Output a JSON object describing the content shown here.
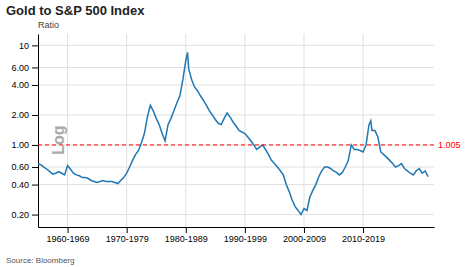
{
  "chart_data": {
    "type": "line",
    "title": "Gold to S&P 500 Index",
    "y_label": "Ratio",
    "watermark": "Log",
    "source": "Source: Bloomberg",
    "log": "y",
    "grid": true,
    "xlim": [
      1955,
      2022
    ],
    "ylim": [
      0.15,
      13
    ],
    "xticks": [
      {
        "value": 1960,
        "label": "1960-1969"
      },
      {
        "value": 1970,
        "label": "1970-1979"
      },
      {
        "value": 1980,
        "label": "1980-1989"
      },
      {
        "value": 1990,
        "label": "1990-1999"
      },
      {
        "value": 2000,
        "label": "2000-2009"
      },
      {
        "value": 2010,
        "label": "2010-2019"
      }
    ],
    "yticks": [
      {
        "value": 0.2,
        "label": "0.20"
      },
      {
        "value": 0.4,
        "label": "0.40"
      },
      {
        "value": 0.6,
        "label": "0.60"
      },
      {
        "value": 1.0,
        "label": "1.00"
      },
      {
        "value": 2.0,
        "label": "2.00"
      },
      {
        "value": 4.0,
        "label": "4.00"
      },
      {
        "value": 6.0,
        "label": "6.00"
      },
      10
    ],
    "ref_line": {
      "value": 1.0,
      "label": "1.005",
      "color": "#FF0000",
      "line_style": "dashed"
    },
    "x": [
      1955.0,
      1955.5,
      1956.0,
      1956.5,
      1957.0,
      1957.5,
      1958.0,
      1958.5,
      1959.0,
      1959.5,
      1960.0,
      1960.5,
      1961.0,
      1961.5,
      1962.0,
      1962.5,
      1963.0,
      1963.5,
      1964.0,
      1964.5,
      1965.0,
      1965.5,
      1966.0,
      1966.5,
      1967.0,
      1967.5,
      1968.0,
      1968.5,
      1969.0,
      1969.5,
      1970.0,
      1970.5,
      1971.0,
      1971.5,
      1972.0,
      1972.5,
      1973.0,
      1973.5,
      1974.0,
      1974.5,
      1975.0,
      1975.5,
      1976.0,
      1976.5,
      1977.0,
      1977.5,
      1978.0,
      1978.5,
      1979.0,
      1979.5,
      1980.0,
      1980.3,
      1980.5,
      1981.0,
      1981.5,
      1982.0,
      1982.5,
      1983.0,
      1983.5,
      1984.0,
      1984.5,
      1985.0,
      1985.5,
      1986.0,
      1986.5,
      1987.0,
      1987.5,
      1988.0,
      1988.5,
      1989.0,
      1990.0,
      1990.5,
      1991.0,
      1991.5,
      1992.0,
      1992.5,
      1993.0,
      1993.5,
      1994.0,
      1994.5,
      1995.0,
      1995.5,
      1996.0,
      1996.5,
      1997.0,
      1997.5,
      1998.0,
      1998.5,
      1999.0,
      1999.5,
      2000.0,
      2000.5,
      2001.0,
      2001.5,
      2002.0,
      2002.5,
      2003.0,
      2003.5,
      2004.0,
      2004.5,
      2005.0,
      2005.5,
      2006.0,
      2006.5,
      2007.0,
      2007.5,
      2008.0,
      2008.5,
      2009.0,
      2009.5,
      2010.0,
      2010.5,
      2011.0,
      2011.3,
      2011.5,
      2012.0,
      2012.5,
      2013.0,
      2013.5,
      2014.0,
      2014.5,
      2015.0,
      2015.5,
      2016.0,
      2016.5,
      2017.0,
      2017.5,
      2018.0,
      2018.5,
      2019.0,
      2019.5,
      2020.0,
      2020.5,
      2021.0
    ],
    "values": [
      0.65,
      0.63,
      0.6,
      0.57,
      0.54,
      0.51,
      0.52,
      0.54,
      0.52,
      0.5,
      0.62,
      0.57,
      0.52,
      0.5,
      0.49,
      0.47,
      0.47,
      0.46,
      0.44,
      0.43,
      0.42,
      0.43,
      0.44,
      0.43,
      0.43,
      0.43,
      0.42,
      0.41,
      0.44,
      0.47,
      0.52,
      0.6,
      0.7,
      0.8,
      0.88,
      1.05,
      1.3,
      1.9,
      2.5,
      2.2,
      1.85,
      1.6,
      1.3,
      1.1,
      1.6,
      1.85,
      2.2,
      2.65,
      3.1,
      4.5,
      7.0,
      8.5,
      5.8,
      4.5,
      3.8,
      3.5,
      3.1,
      2.8,
      2.5,
      2.2,
      2.0,
      1.8,
      1.65,
      1.6,
      1.85,
      2.1,
      1.9,
      1.7,
      1.55,
      1.4,
      1.3,
      1.2,
      1.1,
      1.0,
      0.9,
      0.95,
      1.0,
      0.9,
      0.8,
      0.7,
      0.65,
      0.6,
      0.55,
      0.5,
      0.4,
      0.34,
      0.28,
      0.24,
      0.22,
      0.2,
      0.23,
      0.22,
      0.3,
      0.35,
      0.4,
      0.48,
      0.55,
      0.6,
      0.6,
      0.58,
      0.55,
      0.53,
      0.5,
      0.53,
      0.6,
      0.7,
      1.0,
      0.9,
      0.9,
      0.88,
      0.85,
      1.0,
      1.6,
      1.75,
      1.4,
      1.4,
      1.2,
      0.85,
      0.8,
      0.75,
      0.7,
      0.65,
      0.6,
      0.62,
      0.65,
      0.58,
      0.55,
      0.52,
      0.5,
      0.55,
      0.58,
      0.52,
      0.55,
      0.48
    ]
  }
}
